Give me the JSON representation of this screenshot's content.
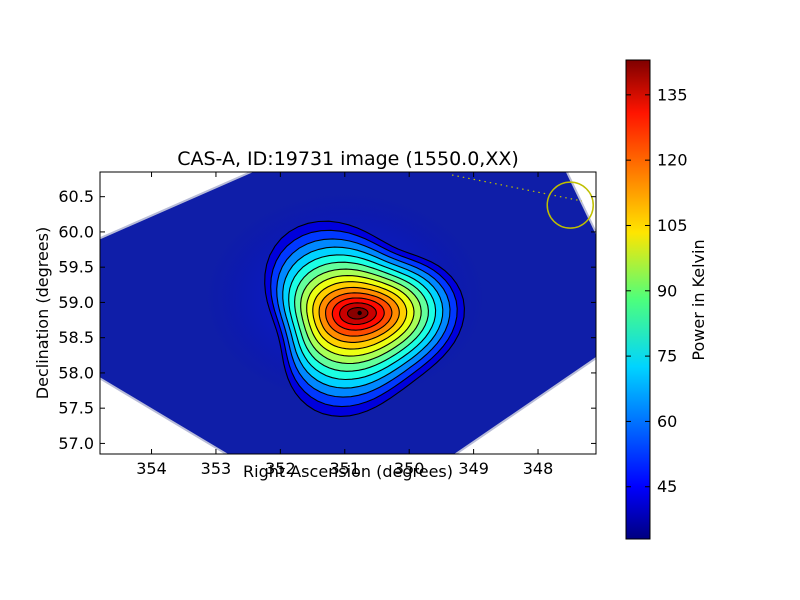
{
  "chart_data": {
    "type": "heatmap",
    "title": "CAS-A, ID:19731 image (1550.0,XX)",
    "xlabel": "Right Ascension (degrees)",
    "ylabel": "Declination (degrees)",
    "xlim": [
      354.8,
      347.1
    ],
    "ylim": [
      56.85,
      60.85
    ],
    "x_ticks": [
      354,
      353,
      352,
      351,
      350,
      349,
      348
    ],
    "y_ticks": [
      57.0,
      57.5,
      58.0,
      58.5,
      59.0,
      59.5,
      60.0,
      60.5
    ],
    "x_tick_labels": [
      "354",
      "353",
      "352",
      "351",
      "350",
      "349",
      "348"
    ],
    "y_tick_labels": [
      "57.0",
      "57.5",
      "58.0",
      "58.5",
      "59.0",
      "59.5",
      "60.0",
      "60.5"
    ],
    "source": {
      "ra": 350.8,
      "dec": 58.85,
      "peak_kelvin": 142
    },
    "background_kelvin": 35,
    "contour_count": 14,
    "beam_marker": {
      "ra": 347.5,
      "dec": 60.38,
      "color": "#bfbf00"
    },
    "grid": false,
    "colorbar": {
      "label": "Power in Kelvin",
      "range": [
        33,
        143
      ],
      "ticks": [
        45,
        60,
        75,
        90,
        105,
        120,
        135
      ],
      "tick_labels": [
        "45",
        "60",
        "75",
        "90",
        "105",
        "120",
        "135"
      ],
      "colormap": "jet"
    }
  }
}
